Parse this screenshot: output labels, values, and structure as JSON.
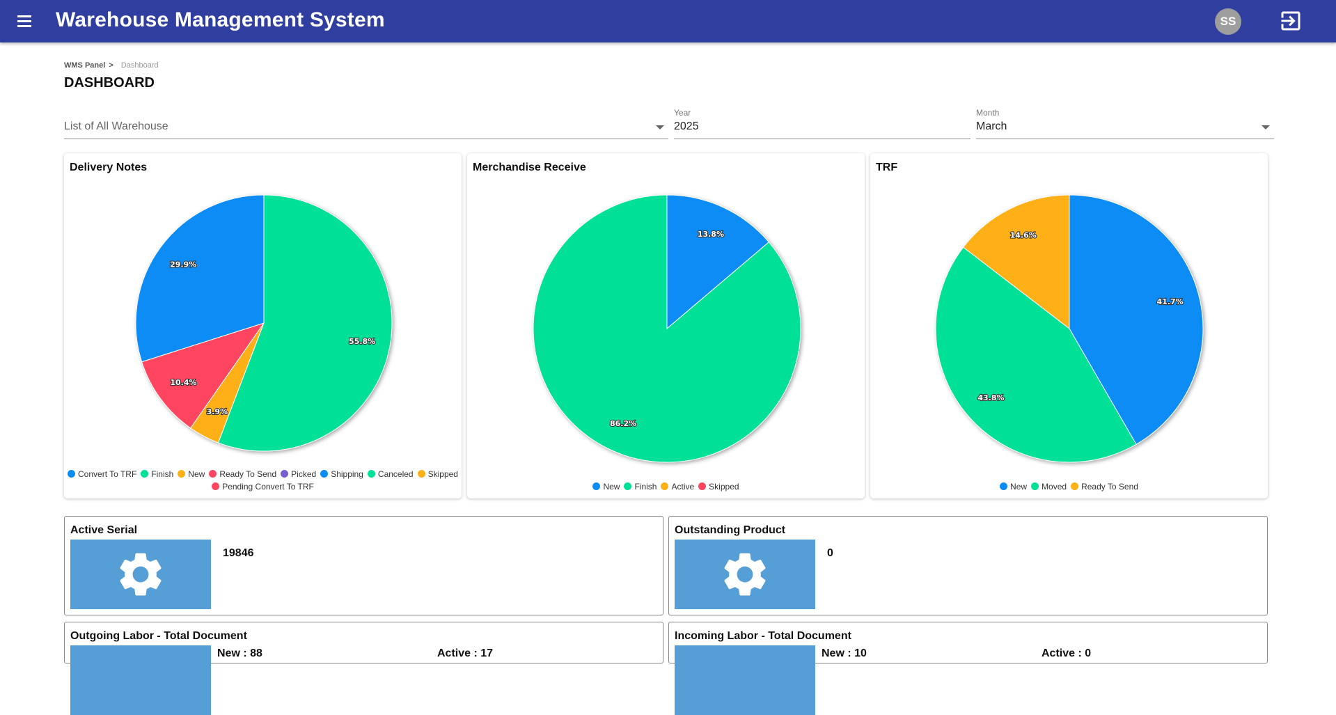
{
  "app": {
    "title": "Warehouse Management System",
    "user_initials": "SS"
  },
  "breadcrumb": {
    "root": "WMS Panel",
    "separator": ">",
    "current": "Dashboard"
  },
  "page": {
    "title": "DASHBOARD"
  },
  "filters": {
    "warehouse": {
      "placeholder": "List of All Warehouse",
      "value": ""
    },
    "year": {
      "label": "Year",
      "value": "2025"
    },
    "month": {
      "label": "Month",
      "value": "March"
    }
  },
  "colors": {
    "appbar": "#303f9f",
    "tile": "#559ed6",
    "blue": "#0a8cf5",
    "green": "#00e096",
    "orange": "#feb019",
    "red": "#ff4560",
    "purple": "#775dd0"
  },
  "charts": {
    "delivery_notes": {
      "title": "Delivery Notes"
    },
    "merchandise_receive": {
      "title": "Merchandise Receive"
    },
    "trf": {
      "title": "TRF"
    }
  },
  "chart_data": [
    {
      "type": "pie",
      "title": "Delivery Notes",
      "slices": [
        {
          "label": "Finish",
          "value": 55.8,
          "display": "55.8%",
          "color": "#00e096"
        },
        {
          "label": "Skipped",
          "value": 3.9,
          "display": "3.9%",
          "color": "#feb019"
        },
        {
          "label": "Ready To Send",
          "value": 10.4,
          "display": "10.4%",
          "color": "#ff4560"
        },
        {
          "label": "Convert To TRF",
          "value": 29.9,
          "display": "29.9%",
          "color": "#0a8cf5"
        }
      ],
      "legend": [
        {
          "label": "Convert To TRF",
          "color": "#0a8cf5"
        },
        {
          "label": "Finish",
          "color": "#00e096"
        },
        {
          "label": "New",
          "color": "#feb019"
        },
        {
          "label": "Ready To Send",
          "color": "#ff4560"
        },
        {
          "label": "Picked",
          "color": "#775dd0"
        },
        {
          "label": "Shipping",
          "color": "#0a8cf5"
        },
        {
          "label": "Canceled",
          "color": "#00e096"
        },
        {
          "label": "Skipped",
          "color": "#feb019"
        },
        {
          "label": "Pending Convert To TRF",
          "color": "#ff4560"
        }
      ],
      "legend_position": "bottom"
    },
    {
      "type": "pie",
      "title": "Merchandise Receive",
      "slices": [
        {
          "label": "New",
          "value": 13.8,
          "display": "13.8%",
          "color": "#0a8cf5"
        },
        {
          "label": "Finish",
          "value": 86.2,
          "display": "86.2%",
          "color": "#00e096"
        }
      ],
      "legend": [
        {
          "label": "New",
          "color": "#0a8cf5"
        },
        {
          "label": "Finish",
          "color": "#00e096"
        },
        {
          "label": "Active",
          "color": "#feb019"
        },
        {
          "label": "Skipped",
          "color": "#ff4560"
        }
      ],
      "legend_position": "bottom"
    },
    {
      "type": "pie",
      "title": "TRF",
      "slices": [
        {
          "label": "New",
          "value": 41.7,
          "display": "41.7%",
          "color": "#0a8cf5"
        },
        {
          "label": "Moved",
          "value": 43.8,
          "display": "43.8%",
          "color": "#00e096"
        },
        {
          "label": "Ready To Send",
          "value": 14.6,
          "display": "14.6%",
          "color": "#feb019"
        }
      ],
      "legend": [
        {
          "label": "New",
          "color": "#0a8cf5"
        },
        {
          "label": "Moved",
          "color": "#00e096"
        },
        {
          "label": "Ready To Send",
          "color": "#feb019"
        }
      ],
      "legend_position": "bottom"
    }
  ],
  "stats": {
    "active_serial": {
      "title": "Active Serial",
      "value": "19846",
      "icon": "gear-icon"
    },
    "outstanding_product": {
      "title": "Outstanding Product",
      "value": "0",
      "icon": "gear-icon"
    },
    "outgoing_labor": {
      "title": "Outgoing Labor - Total Document",
      "new": "New : 88",
      "active": "Active : 17"
    },
    "incoming_labor": {
      "title": "Incoming Labor - Total Document",
      "new": "New : 10",
      "active": "Active : 0"
    }
  }
}
